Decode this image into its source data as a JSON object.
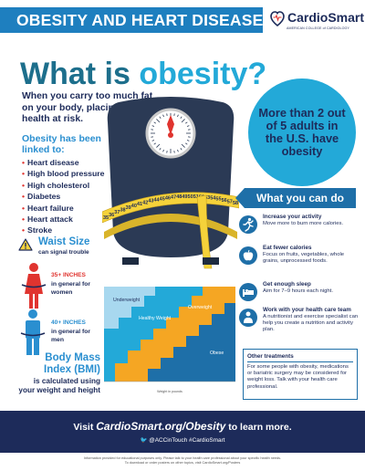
{
  "header": {
    "title": "OBESITY AND HEART DISEASE",
    "logo_name": "CardioSmart",
    "logo_sub": "AMERICAN COLLEGE of CARDIOLOGY"
  },
  "main_title": {
    "part1": "What is ",
    "part2": "obesity?"
  },
  "intro": "When you carry too much fat on your body, placing your health at risk.",
  "linked": {
    "title": "Obesity has been linked to:",
    "items": [
      "Heart disease",
      "High blood pressure",
      "High cholesterol",
      "Diabetes",
      "Heart failure",
      "Heart attack",
      "Stroke"
    ]
  },
  "waist": {
    "title": "Waist Size",
    "subtitle": "can signal trouble",
    "women_measure": "35+ INCHES",
    "women_text": "in general for women",
    "men_measure": "40+ INCHES",
    "men_text": "in general for men"
  },
  "bmi": {
    "title": "Body Mass Index (BMI)",
    "desc": "is calculated using your weight and height",
    "chart": {
      "zones": [
        "Underweight",
        "Healthy Weight",
        "Overweight",
        "Obese"
      ],
      "xlabel": "Weight in pounds"
    }
  },
  "scale": {
    "tape_numbers": [
      "35",
      "36",
      "37",
      "38",
      "39",
      "40",
      "41",
      "42",
      "43",
      "44",
      "45",
      "46",
      "47",
      "48",
      "49",
      "50",
      "51",
      "52",
      "53",
      "54",
      "55",
      "56",
      "57",
      "58"
    ]
  },
  "stat": "More than 2 out of 5 adults in the U.S. have obesity",
  "what_you_can_do": {
    "title": "What you can do",
    "actions": [
      {
        "title": "Increase your activity",
        "desc": "Move more to burn more calories.",
        "icon": "running-icon"
      },
      {
        "title": "Eat fewer calories",
        "desc": "Focus on fruits, vegetables, whole grains, unprocessed foods.",
        "icon": "apple-icon"
      },
      {
        "title": "Get enough sleep",
        "desc": "Aim for 7–9 hours each night.",
        "icon": "bed-icon"
      },
      {
        "title": "Work with your health care team",
        "desc": "A nutritionist and exercise specialist can help you create a nutrition and activity plan.",
        "icon": "doctor-icon"
      }
    ],
    "other_title": "Other treatments",
    "other_desc": "For some people with obesity, medications or bariatric surgery may be considered for weight loss. Talk with your health care professional."
  },
  "footer": {
    "visit_prefix": "Visit ",
    "visit_site": "CardioSmart.org/Obesity",
    "visit_suffix": " to learn more.",
    "social": "@ACCinTouch #CardioSmart",
    "disclaimer_1": "Information provided for educational purposes only. Please talk to your health care professional about your specific health needs.",
    "disclaimer_2": "To download or order posters on other topics, visit CardioSmart.org/Posters"
  },
  "colors": {
    "header_blue": "#1e7fbf",
    "title_teal": "#1d6f8c",
    "accent_blue": "#23a9d8",
    "navy": "#1d2b5a",
    "red": "#e0342f",
    "tape_yellow": "#f5d23a",
    "scale_dark": "#2b3a55"
  }
}
